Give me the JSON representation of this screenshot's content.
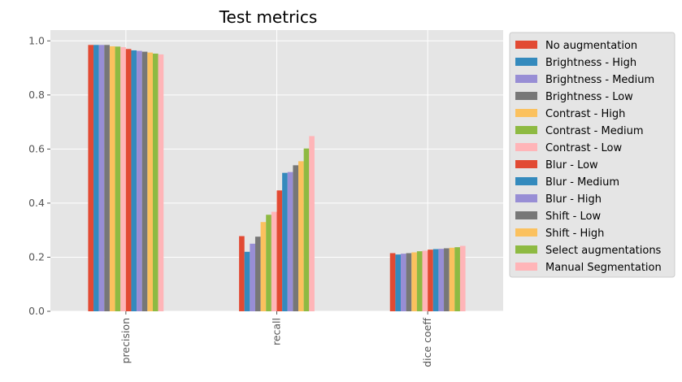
{
  "chart_data": {
    "type": "bar",
    "title": "Test metrics",
    "xlabel": "",
    "ylabel": "",
    "categories": [
      "precision",
      "recall",
      "dice coeff"
    ],
    "ylim": [
      0,
      1.04
    ],
    "yticks": [
      "0.0",
      "0.2",
      "0.4",
      "0.6",
      "0.8",
      "1.0"
    ],
    "grid": true,
    "legend_position": "outside right",
    "series": [
      {
        "name": "No augmentation",
        "color": "#E24A33",
        "values": [
          0.985,
          0.278,
          0.215
        ]
      },
      {
        "name": "Brightness - High",
        "color": "#348ABD",
        "values": [
          0.985,
          0.22,
          0.21
        ]
      },
      {
        "name": "Brightness - Medium",
        "color": "#988ED5",
        "values": [
          0.985,
          0.25,
          0.213
        ]
      },
      {
        "name": "Brightness - Low",
        "color": "#777777",
        "values": [
          0.985,
          0.276,
          0.215
        ]
      },
      {
        "name": "Contrast - High",
        "color": "#FBC15E",
        "values": [
          0.98,
          0.33,
          0.218
        ]
      },
      {
        "name": "Contrast - Medium",
        "color": "#8EBA42",
        "values": [
          0.979,
          0.357,
          0.222
        ]
      },
      {
        "name": "Contrast - Low",
        "color": "#FFB5B8",
        "values": [
          0.977,
          0.368,
          0.224
        ]
      },
      {
        "name": "Blur - Low",
        "color": "#E24A33",
        "values": [
          0.97,
          0.447,
          0.228
        ]
      },
      {
        "name": "Blur - Medium",
        "color": "#348ABD",
        "values": [
          0.965,
          0.512,
          0.23
        ]
      },
      {
        "name": "Blur - High",
        "color": "#988ED5",
        "values": [
          0.963,
          0.515,
          0.231
        ]
      },
      {
        "name": "Shift - Low",
        "color": "#777777",
        "values": [
          0.96,
          0.54,
          0.233
        ]
      },
      {
        "name": "Shift - High",
        "color": "#FBC15E",
        "values": [
          0.957,
          0.555,
          0.235
        ]
      },
      {
        "name": "Select augmentations",
        "color": "#8EBA42",
        "values": [
          0.953,
          0.602,
          0.237
        ]
      },
      {
        "name": "Manual Segmentation",
        "color": "#FFB5B8",
        "values": [
          0.95,
          0.648,
          0.242
        ]
      }
    ]
  }
}
